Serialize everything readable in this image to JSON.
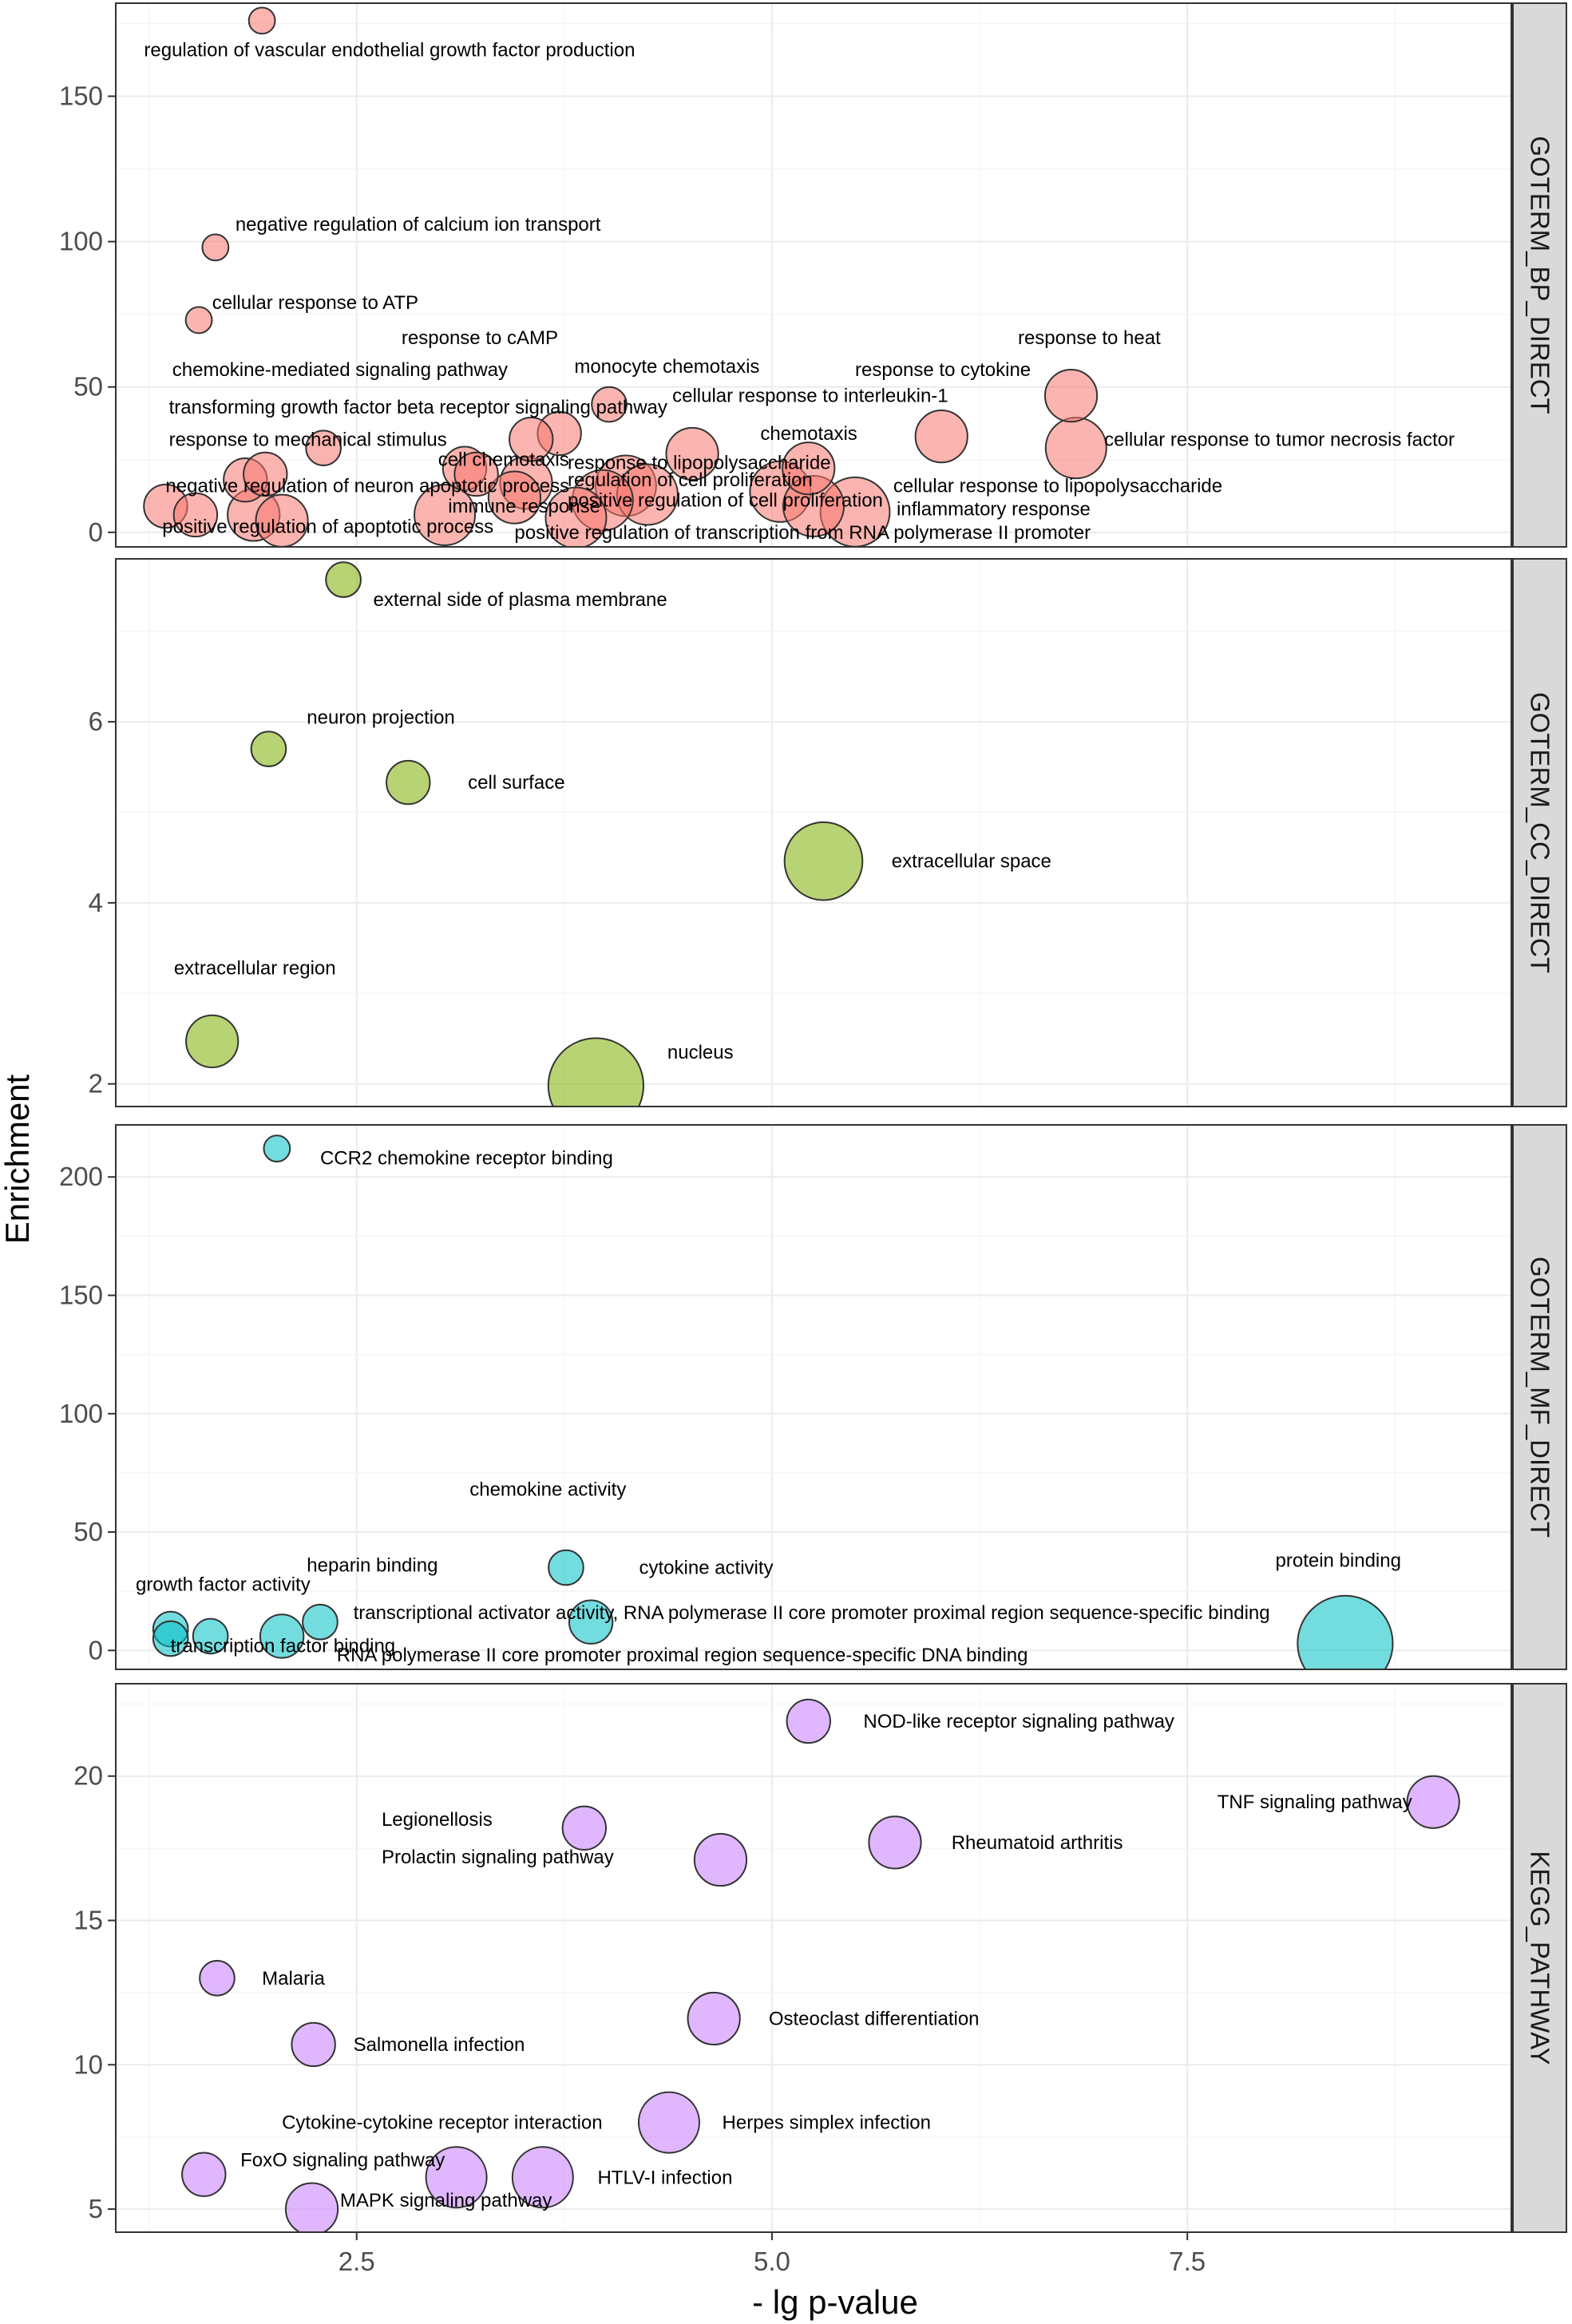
{
  "chart_data": {
    "type": "scatter",
    "xlabel": "- lg p-value",
    "ylabel": "Enrichment",
    "xlim": [
      1.05,
      9.45
    ],
    "x_ticks": [
      2.5,
      5.0,
      7.5
    ],
    "x_tick_labels": [
      "2.5",
      "5.0",
      "7.5"
    ],
    "panels": [
      {
        "name": "GOTERM_BP_DIRECT",
        "color": "#F8766D",
        "ylim": [
          -5,
          182
        ],
        "y_ticks": [
          0,
          50,
          100,
          150
        ],
        "y_tick_labels": [
          "0",
          "50",
          "100",
          "150"
        ],
        "points": [
          {
            "x": 1.93,
            "y": 176,
            "count": 2,
            "label": "regulation of vascular endothelial growth factor production"
          },
          {
            "x": 1.65,
            "y": 98,
            "count": 2,
            "label": "negative regulation of calcium ion transport"
          },
          {
            "x": 1.55,
            "y": 73,
            "count": 2,
            "label": "cellular response to ATP"
          },
          {
            "x": 2.3,
            "y": 29,
            "count": 3,
            "label": "response to mechanical stimulus"
          },
          {
            "x": 4.02,
            "y": 44,
            "count": 3,
            "label": "monocyte chemotaxis"
          },
          {
            "x": 3.72,
            "y": 34,
            "count": 4,
            "label": ""
          },
          {
            "x": 3.55,
            "y": 32,
            "count": 4,
            "label": ""
          },
          {
            "x": 6.8,
            "y": 47,
            "count": 5,
            "label": "response to heat"
          },
          {
            "x": 6.83,
            "y": 29,
            "count": 6,
            "label": "cellular response to tumor necrosis factor"
          },
          {
            "x": 6.02,
            "y": 33,
            "count": 5,
            "label": "cellular response to interleukin-1"
          },
          {
            "x": 4.52,
            "y": 27,
            "count": 5,
            "label": "response to lipopolysaccharide"
          },
          {
            "x": 5.22,
            "y": 22,
            "count": 5,
            "label": "chemotaxis"
          },
          {
            "x": 3.15,
            "y": 22,
            "count": 4,
            "label": "cell chemotaxis"
          },
          {
            "x": 3.22,
            "y": 20,
            "count": 4,
            "label": ""
          },
          {
            "x": 3.52,
            "y": 17,
            "count": 5,
            "label": "negative regulation of neuron apoptotic process"
          },
          {
            "x": 3.45,
            "y": 12,
            "count": 5,
            "label": "immune response"
          },
          {
            "x": 3.03,
            "y": 6,
            "count": 6,
            "label": ""
          },
          {
            "x": 4.12,
            "y": 16,
            "count": 6,
            "label": "regulation of cell proliferation"
          },
          {
            "x": 4.25,
            "y": 13,
            "count": 6,
            "label": "positive regulation of cell proliferation"
          },
          {
            "x": 3.98,
            "y": 11,
            "count": 6,
            "label": ""
          },
          {
            "x": 3.82,
            "y": 5,
            "count": 6,
            "label": "positive regulation of transcription from RNA polymerase II promoter"
          },
          {
            "x": 5.05,
            "y": 14,
            "count": 6,
            "label": ""
          },
          {
            "x": 5.25,
            "y": 9,
            "count": 6,
            "label": "cellular response to lipopolysaccharide"
          },
          {
            "x": 5.5,
            "y": 7,
            "count": 7,
            "label": "inflammatory response"
          },
          {
            "x": 1.35,
            "y": 9,
            "count": 4,
            "label": ""
          },
          {
            "x": 1.53,
            "y": 6,
            "count": 4,
            "label": "positive regulation of apoptotic process"
          },
          {
            "x": 1.83,
            "y": 18,
            "count": 4,
            "label": "transforming growth factor beta receptor signaling pathway"
          },
          {
            "x": 1.95,
            "y": 20,
            "count": 4,
            "label": "chemokine-mediated signaling pathway"
          },
          {
            "x": 1.88,
            "y": 6,
            "count": 5,
            "label": ""
          },
          {
            "x": 2.05,
            "y": 4,
            "count": 5,
            "label": ""
          }
        ],
        "labels": [
          {
            "text": "regulation of vascular endothelial growth factor production",
            "x": 1.22,
            "y": 166
          },
          {
            "text": "negative regulation of calcium ion transport",
            "x": 1.77,
            "y": 106
          },
          {
            "text": "cellular response to ATP",
            "x": 1.63,
            "y": 79
          },
          {
            "text": "response to cAMP",
            "x": 2.77,
            "y": 67
          },
          {
            "text": "chemokine-mediated signaling pathway",
            "x": 1.39,
            "y": 56
          },
          {
            "text": "monocyte chemotaxis",
            "x": 3.81,
            "y": 57
          },
          {
            "text": "response to cytokine",
            "x": 5.5,
            "y": 56
          },
          {
            "text": "response to heat",
            "x": 6.48,
            "y": 67
          },
          {
            "text": "cellular response to interleukin-1",
            "x": 4.4,
            "y": 47
          },
          {
            "text": "transforming growth factor beta receptor signaling pathway",
            "x": 1.37,
            "y": 43
          },
          {
            "text": "chemotaxis",
            "x": 4.93,
            "y": 34
          },
          {
            "text": "response to mechanical stimulus",
            "x": 1.37,
            "y": 32
          },
          {
            "text": "cellular response to tumor necrosis factor",
            "x": 7.0,
            "y": 32
          },
          {
            "text": "response to lipopolysaccharide",
            "x": 3.77,
            "y": 24
          },
          {
            "text": "cell chemotaxis",
            "x": 2.99,
            "y": 25
          },
          {
            "text": "regulation of cell proliferation",
            "x": 3.77,
            "y": 18
          },
          {
            "text": "negative regulation of neuron apoptotic process",
            "x": 1.35,
            "y": 16
          },
          {
            "text": "positive regulation of cell proliferation",
            "x": 3.77,
            "y": 11
          },
          {
            "text": "cellular response to lipopolysaccharide",
            "x": 5.73,
            "y": 16
          },
          {
            "text": "immune response",
            "x": 3.05,
            "y": 9
          },
          {
            "text": "inflammatory response",
            "x": 5.75,
            "y": 8
          },
          {
            "text": "positive regulation of apoptotic process",
            "x": 1.33,
            "y": 2
          },
          {
            "text": "positive regulation of transcription from RNA polymerase II promoter",
            "x": 3.45,
            "y": 0
          }
        ]
      },
      {
        "name": "GOTERM_CC_DIRECT",
        "color": "#7CAE00",
        "ylim": [
          1.75,
          7.8
        ],
        "y_ticks": [
          2,
          4,
          6
        ],
        "y_tick_labels": [
          "2",
          "4",
          "6"
        ],
        "points": [
          {
            "x": 2.42,
            "y": 7.57,
            "count": 3,
            "label": "external side of plasma membrane"
          },
          {
            "x": 1.97,
            "y": 5.7,
            "count": 3,
            "label": "neuron projection"
          },
          {
            "x": 2.81,
            "y": 5.33,
            "count": 4,
            "label": "cell surface"
          },
          {
            "x": 5.31,
            "y": 4.46,
            "count": 8,
            "label": "extracellular space"
          },
          {
            "x": 1.63,
            "y": 2.47,
            "count": 5,
            "label": "extracellular region"
          },
          {
            "x": 3.94,
            "y": 1.98,
            "count": 10,
            "label": "nucleus"
          }
        ],
        "labels": [
          {
            "text": "external side of plasma membrane",
            "x": 2.6,
            "y": 7.35
          },
          {
            "text": "neuron projection",
            "x": 2.2,
            "y": 6.05
          },
          {
            "text": "cell surface",
            "x": 3.17,
            "y": 5.33
          },
          {
            "text": "extracellular space",
            "x": 5.72,
            "y": 4.46
          },
          {
            "text": "extracellular region",
            "x": 1.4,
            "y": 3.28
          },
          {
            "text": "nucleus",
            "x": 4.37,
            "y": 2.35
          }
        ]
      },
      {
        "name": "GOTERM_MF_DIRECT",
        "color": "#00BFC4",
        "ylim": [
          -8,
          222
        ],
        "y_ticks": [
          0,
          50,
          100,
          150,
          200
        ],
        "y_tick_labels": [
          "0",
          "50",
          "100",
          "150",
          "200"
        ],
        "points": [
          {
            "x": 2.02,
            "y": 212,
            "count": 2,
            "label": "CCR2 chemokine receptor binding"
          },
          {
            "x": 3.76,
            "y": 35,
            "count": 3,
            "label": "chemokine activity"
          },
          {
            "x": 3.91,
            "y": 12,
            "count": 4,
            "label": "cytokine activity"
          },
          {
            "x": 2.28,
            "y": 12,
            "count": 3,
            "label": "heparin binding"
          },
          {
            "x": 1.38,
            "y": 9,
            "count": 3,
            "label": "growth factor activity"
          },
          {
            "x": 1.38,
            "y": 5,
            "count": 3,
            "label": ""
          },
          {
            "x": 1.62,
            "y": 6,
            "count": 3,
            "label": "transcription factor binding"
          },
          {
            "x": 2.05,
            "y": 6,
            "count": 4,
            "label": "transcriptional activator activity, RNA polymerase II core promoter proximal region sequence-specific binding"
          },
          {
            "x": 8.45,
            "y": 3,
            "count": 10,
            "label": "protein binding"
          }
        ],
        "labels": [
          {
            "text": "CCR2 chemokine receptor binding",
            "x": 2.28,
            "y": 208
          },
          {
            "text": "chemokine activity",
            "x": 3.18,
            "y": 68
          },
          {
            "text": "heparin binding",
            "x": 2.2,
            "y": 36
          },
          {
            "text": "cytokine activity",
            "x": 4.2,
            "y": 35
          },
          {
            "text": "growth factor activity",
            "x": 1.17,
            "y": 28
          },
          {
            "text": "protein binding",
            "x": 8.03,
            "y": 38
          },
          {
            "text": "transcriptional activator activity, RNA polymerase II core promoter proximal region sequence-specific binding",
            "x": 2.48,
            "y": 16
          },
          {
            "text": "transcription factor binding",
            "x": 1.38,
            "y": 2
          },
          {
            "text": "RNA polymerase II core promoter proximal region sequence-specific DNA binding",
            "x": 2.38,
            "y": -2
          }
        ]
      },
      {
        "name": "KEGG_PATHWAY",
        "color": "#C77CFF",
        "ylim": [
          4.2,
          23.2
        ],
        "y_ticks": [
          5,
          10,
          15,
          20
        ],
        "y_tick_labels": [
          "5",
          "10",
          "15",
          "20"
        ],
        "points": [
          {
            "x": 5.22,
            "y": 21.9,
            "count": 4,
            "label": "NOD-like receptor signaling pathway"
          },
          {
            "x": 8.98,
            "y": 19.1,
            "count": 5,
            "label": "TNF signaling pathway"
          },
          {
            "x": 3.87,
            "y": 18.2,
            "count": 4,
            "label": "Legionellosis"
          },
          {
            "x": 5.74,
            "y": 17.7,
            "count": 5,
            "label": "Rheumatoid arthritis"
          },
          {
            "x": 4.69,
            "y": 17.1,
            "count": 5,
            "label": "Prolactin signaling pathway"
          },
          {
            "x": 1.66,
            "y": 13.0,
            "count": 3,
            "label": "Malaria"
          },
          {
            "x": 4.65,
            "y": 11.6,
            "count": 5,
            "label": "Osteoclast differentiation"
          },
          {
            "x": 2.24,
            "y": 10.7,
            "count": 4,
            "label": "Salmonella infection"
          },
          {
            "x": 4.38,
            "y": 8.0,
            "count": 6,
            "label": "Herpes simplex infection"
          },
          {
            "x": 1.58,
            "y": 6.2,
            "count": 4,
            "label": "FoxO signaling pathway"
          },
          {
            "x": 3.1,
            "y": 6.1,
            "count": 6,
            "label": "Cytokine-cytokine receptor interaction"
          },
          {
            "x": 3.62,
            "y": 6.1,
            "count": 6,
            "label": "HTLV-I infection"
          },
          {
            "x": 2.23,
            "y": 5.0,
            "count": 5,
            "label": "MAPK signaling pathway"
          }
        ],
        "labels": [
          {
            "text": "NOD-like receptor signaling pathway",
            "x": 5.55,
            "y": 21.9
          },
          {
            "text": "TNF signaling pathway",
            "x": 7.68,
            "y": 19.1
          },
          {
            "text": "Legionellosis",
            "x": 2.65,
            "y": 18.5
          },
          {
            "text": "Rheumatoid arthritis",
            "x": 6.08,
            "y": 17.7
          },
          {
            "text": "Prolactin signaling pathway",
            "x": 2.65,
            "y": 17.2
          },
          {
            "text": "Malaria",
            "x": 1.93,
            "y": 13.0
          },
          {
            "text": "Osteoclast differentiation",
            "x": 4.98,
            "y": 11.6
          },
          {
            "text": "Salmonella infection",
            "x": 2.48,
            "y": 10.7
          },
          {
            "text": "Cytokine-cytokine receptor interaction",
            "x": 2.05,
            "y": 8.0
          },
          {
            "text": "Herpes simplex infection",
            "x": 4.7,
            "y": 8.0
          },
          {
            "text": "FoxO signaling pathway",
            "x": 1.8,
            "y": 6.7
          },
          {
            "text": "HTLV-I infection",
            "x": 3.95,
            "y": 6.1
          },
          {
            "text": "MAPK signaling pathway",
            "x": 2.4,
            "y": 5.3
          }
        ]
      }
    ]
  }
}
